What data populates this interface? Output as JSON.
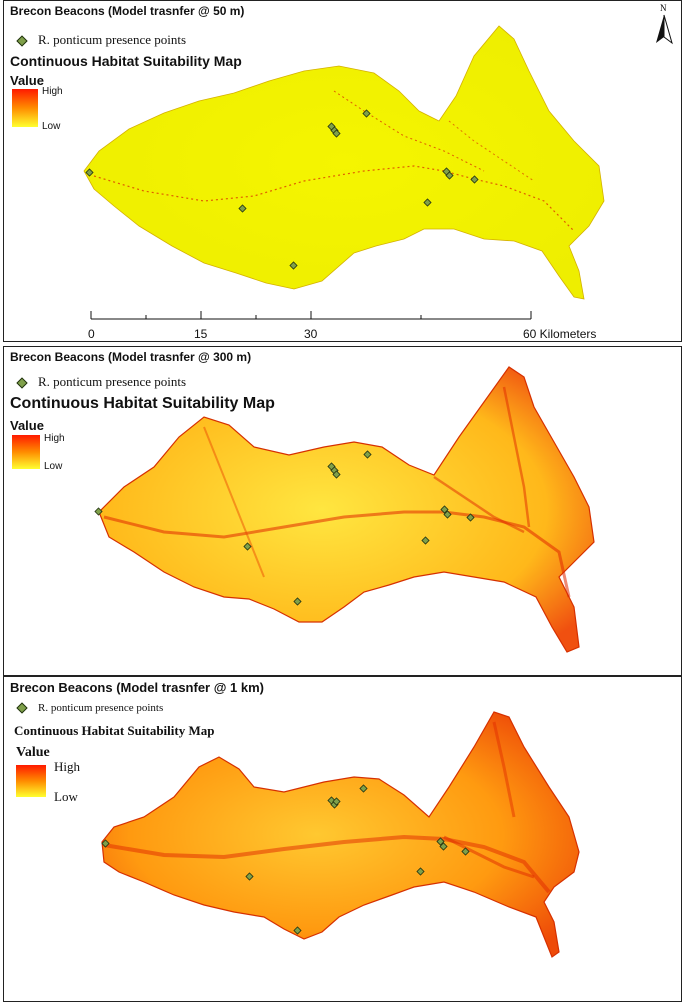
{
  "panels": [
    {
      "title": "Brecon Beacons (Model trasnfer @ 50 m)",
      "presence_label": "R. ponticum presence points",
      "map_title": "Continuous Habitat Suitability Map",
      "legend_title": "Value",
      "legend_high": "High",
      "legend_low": "Low",
      "fill_color": "#f2f200",
      "edge_color": "#d81f00"
    },
    {
      "title": "Brecon Beacons (Model trasnfer @ 300 m)",
      "presence_label": "R. ponticum presence points",
      "map_title": "Continuous Habitat Suitability Map",
      "legend_title": "Value",
      "legend_high": "High",
      "legend_low": "Low",
      "fill_color": "#ffd21a",
      "edge_color": "#ea2a00"
    },
    {
      "title": "Brecon Beacons (Model trasnfer @ 1 km)",
      "presence_label": "R. ponticum presence points",
      "map_title": "Continuous Habitat Suitability Map",
      "legend_title": "Value",
      "legend_high": "High",
      "legend_low": "Low",
      "fill_color": "#ff9a10",
      "edge_color": "#e32400"
    }
  ],
  "north_label": "N",
  "scale": {
    "labels": [
      "0",
      "15",
      "30",
      "60 Kilometers"
    ]
  },
  "icons": {
    "presence": "green-diamond-icon",
    "north": "north-arrow-icon"
  }
}
